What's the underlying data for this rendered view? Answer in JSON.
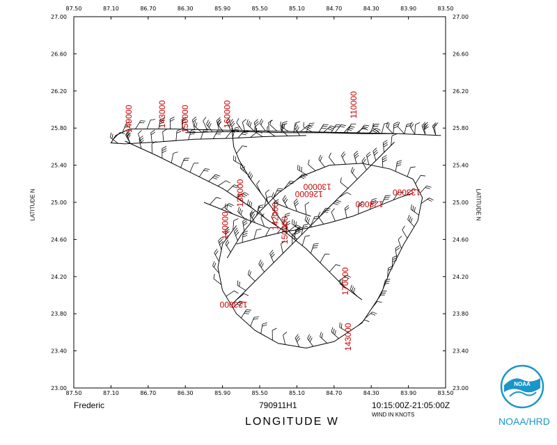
{
  "chart_data": {
    "type": "scatter",
    "title": "",
    "storm_name": "Frederic",
    "flight_id": "790911H1",
    "time_period": "10:15:00Z-21:05:00Z",
    "wind_units_note": "WIND IN KNOTS",
    "xlabel": "LONGITUDE  W",
    "ylabel_left": "LATITUDE  N",
    "ylabel_right": "LATITUDE  N",
    "xlim": [
      87.5,
      83.5
    ],
    "ylim": [
      23.0,
      27.0
    ],
    "x_tick_labels": [
      "87.50",
      "87.10",
      "86.70",
      "86.30",
      "85.90",
      "85.50",
      "85.10",
      "84.70",
      "84.30",
      "83.90",
      "83.50"
    ],
    "y_tick_labels": [
      "23.00",
      "23.40",
      "23.80",
      "24.20",
      "24.60",
      "25.00",
      "25.40",
      "25.80",
      "26.20",
      "26.60",
      "27.00"
    ],
    "altitude_labels": [
      {
        "text": "110000",
        "lon": 84.46,
        "lat": 26.05,
        "rotated": true
      },
      {
        "text": "149000",
        "lon": 86.88,
        "lat": 25.9,
        "rotated": true
      },
      {
        "text": "143000",
        "lon": 86.52,
        "lat": 25.95,
        "rotated": true
      },
      {
        "text": "150000",
        "lon": 86.27,
        "lat": 25.9,
        "rotated": true
      },
      {
        "text": "160000",
        "lon": 85.82,
        "lat": 25.95,
        "rotated": true
      },
      {
        "text": "138000",
        "lon": 85.68,
        "lat": 25.1,
        "rotated": true
      },
      {
        "text": "140000",
        "lon": 85.84,
        "lat": 24.75,
        "rotated": true
      },
      {
        "text": "142000",
        "lon": 85.3,
        "lat": 24.85,
        "rotated": true
      },
      {
        "text": "150000",
        "lon": 85.2,
        "lat": 24.7,
        "rotated": true
      },
      {
        "text": "170000",
        "lon": 84.55,
        "lat": 24.15,
        "rotated": true
      },
      {
        "text": "143000",
        "lon": 84.52,
        "lat": 23.55,
        "rotated": true
      },
      {
        "text": "130000",
        "lon": 84.88,
        "lat": 25.2,
        "rotated": false
      },
      {
        "text": "126000",
        "lon": 84.97,
        "lat": 25.12,
        "rotated": false
      },
      {
        "text": "128000",
        "lon": 84.32,
        "lat": 25.01,
        "rotated": false
      },
      {
        "text": "133000",
        "lon": 83.92,
        "lat": 25.14,
        "rotated": false
      },
      {
        "text": "123000",
        "lon": 85.78,
        "lat": 23.93,
        "rotated": false
      }
    ],
    "flight_track": [
      [
        [
          86.3,
          25.75
        ],
        [
          85.95,
          25.76
        ],
        [
          85.6,
          25.76
        ],
        [
          85.2,
          25.75
        ],
        [
          84.8,
          25.75
        ],
        [
          84.4,
          25.74
        ],
        [
          84.0,
          25.74
        ],
        [
          83.55,
          25.72
        ],
        [
          84.0,
          25.74
        ],
        [
          84.5,
          25.75
        ],
        [
          85.0,
          25.76
        ],
        [
          85.5,
          25.77
        ],
        [
          86.0,
          25.78
        ],
        [
          86.4,
          25.79
        ],
        [
          86.9,
          25.79
        ],
        [
          87.05,
          25.72
        ],
        [
          87.1,
          25.64
        ],
        [
          86.95,
          25.63
        ],
        [
          86.6,
          25.65
        ],
        [
          86.2,
          25.68
        ],
        [
          85.8,
          25.69
        ],
        [
          85.4,
          25.71
        ],
        [
          85.0,
          25.72
        ]
      ],
      [
        [
          86.95,
          25.66
        ],
        [
          86.6,
          25.5
        ],
        [
          86.3,
          25.35
        ],
        [
          85.9,
          25.15
        ],
        [
          85.6,
          24.95
        ],
        [
          85.4,
          24.8
        ],
        [
          85.25,
          24.7
        ],
        [
          85.0,
          24.5
        ],
        [
          84.8,
          24.3
        ],
        [
          84.6,
          24.1
        ],
        [
          84.4,
          23.95
        ]
      ],
      [
        [
          85.8,
          25.8
        ],
        [
          85.78,
          25.6
        ],
        [
          85.72,
          25.45
        ],
        [
          85.6,
          25.25
        ],
        [
          85.45,
          25.05
        ],
        [
          85.3,
          24.85
        ],
        [
          85.18,
          24.68
        ],
        [
          85.1,
          24.6
        ]
      ],
      [
        [
          85.8,
          23.9
        ],
        [
          85.6,
          24.1
        ],
        [
          85.4,
          24.3
        ],
        [
          85.2,
          24.5
        ],
        [
          85.0,
          24.7
        ],
        [
          84.8,
          24.9
        ],
        [
          84.6,
          25.1
        ],
        [
          84.4,
          25.3
        ],
        [
          84.2,
          25.5
        ],
        [
          84.05,
          25.65
        ]
      ],
      [
        [
          85.85,
          24.4
        ],
        [
          85.7,
          24.65
        ],
        [
          85.5,
          24.9
        ],
        [
          85.3,
          25.1
        ],
        [
          85.05,
          25.28
        ],
        [
          84.75,
          25.4
        ],
        [
          84.4,
          25.42
        ],
        [
          84.1,
          25.36
        ],
        [
          83.85,
          25.25
        ],
        [
          83.75,
          25.05
        ],
        [
          83.8,
          24.8
        ],
        [
          83.95,
          24.55
        ],
        [
          84.1,
          24.25
        ],
        [
          84.2,
          24.0
        ],
        [
          84.4,
          23.7
        ],
        [
          84.7,
          23.5
        ],
        [
          85.0,
          23.43
        ],
        [
          85.3,
          23.48
        ],
        [
          85.55,
          23.62
        ],
        [
          85.75,
          23.8
        ],
        [
          85.9,
          24.05
        ],
        [
          85.95,
          24.3
        ],
        [
          85.9,
          24.55
        ],
        [
          85.75,
          24.75
        ]
      ],
      [
        [
          85.75,
          24.55
        ],
        [
          85.5,
          24.62
        ],
        [
          85.25,
          24.68
        ],
        [
          85.0,
          24.72
        ],
        [
          84.75,
          24.78
        ],
        [
          84.5,
          24.85
        ],
        [
          84.25,
          24.95
        ],
        [
          84.0,
          25.05
        ],
        [
          83.85,
          25.1
        ]
      ],
      [
        [
          86.1,
          25.0
        ],
        [
          85.85,
          24.9
        ],
        [
          85.6,
          24.8
        ],
        [
          85.4,
          24.72
        ]
      ],
      [
        [
          85.35,
          25.0
        ],
        [
          85.15,
          24.92
        ],
        [
          84.95,
          24.85
        ]
      ]
    ],
    "wind_barbs_visible": true
  },
  "branding": {
    "logo": "noaa-emblem",
    "logo_text": "NOAA",
    "agency": "NOAA/HRD",
    "accent_color": "#1a96c8",
    "altitude_color": "#cc0000"
  }
}
